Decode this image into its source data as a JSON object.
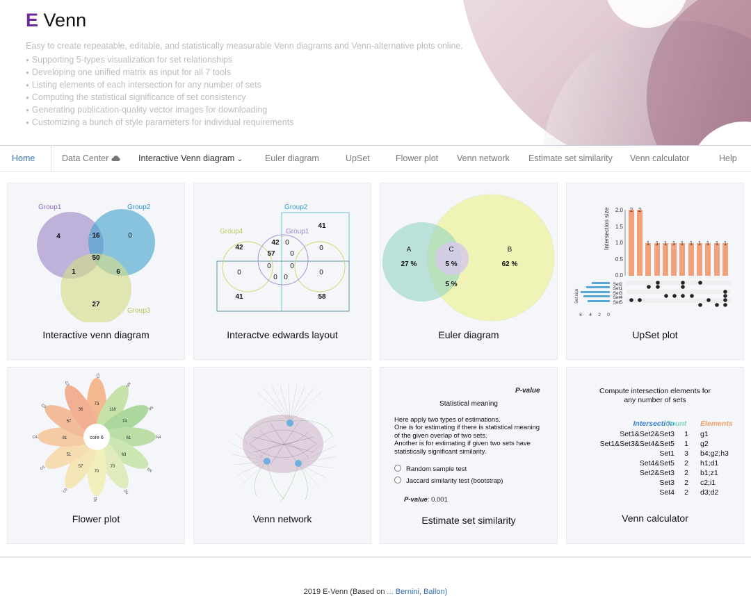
{
  "logo": {
    "letter": "E",
    "name": "Venn"
  },
  "tagline": "Easy to create repeatable, editable, and statistically measurable Venn diagrams and Venn-alternative plots online.",
  "features": [
    "Supporting 5-types visualization for set relationships",
    "Developing one unified matrix as input for all 7 tools",
    "Listing elements of each intersection for any number of sets",
    "Computing the statistical significance of set consistency",
    "Generating publication-quality vector images for downloading",
    "Customizing a bunch of style parameters for individual requirements"
  ],
  "nav": {
    "home": "Home",
    "data_center": "Data Center",
    "interactive": "Interactive Venn diagram",
    "euler": "Euler diagram",
    "upset": "UpSet",
    "flower": "Flower plot",
    "network": "Venn network",
    "similarity": "Estimate set similarity",
    "calculator": "Venn calculator",
    "help": "Help"
  },
  "cards": {
    "venn": {
      "caption": "Interactive venn diagram",
      "group1": "Group1",
      "group2": "Group2",
      "group3": "Group3",
      "values": {
        "a": "4",
        "ab": "16",
        "b": "0",
        "abc": "50",
        "ac": "1",
        "bc": "6",
        "c": "27"
      }
    },
    "edwards": {
      "caption": "Interactve edwards layout",
      "group1": "Group1",
      "group2": "Group2",
      "group4": "Group4",
      "values": [
        "41",
        "42",
        "42",
        "0",
        "57",
        "0",
        "0",
        "0",
        "0",
        "0",
        "0",
        "0",
        "0",
        "41",
        "58"
      ]
    },
    "euler": {
      "caption": "Euler diagram",
      "a": "A",
      "b": "B",
      "c": "C",
      "a_pct": "27 %",
      "c_pct": "5 %",
      "b_pct": "62 %",
      "ac_pct": "5 %"
    },
    "upset": {
      "caption": "UpSet plot",
      "ylabel": "Intersection size",
      "setsize_label": "Set size",
      "y_ticks": [
        "2.0",
        "1.5",
        "1.0",
        "0.5",
        "0.0"
      ],
      "sets": [
        "Set2",
        "Set1",
        "Set3",
        "Set4",
        "Set5"
      ],
      "size_ticks": [
        "6",
        "4",
        "2",
        "0"
      ]
    },
    "flower": {
      "caption": "Flower plot",
      "core": "core 6"
    },
    "network": {
      "caption": "Venn network"
    },
    "similarity": {
      "caption": "Estimate set similarity",
      "logo": "P-value",
      "title": "Statistical meaning",
      "lines": [
        "Here apply two types of estimations.",
        "One is for estimating if there is statistical meaning",
        "of the given overlap of two sets.",
        "Another is for estimating if given two sets have",
        "statistically significant similarity."
      ],
      "option1": "Random sample test",
      "option2": "Jaccard similarity test (bootstrap)",
      "pvalue_label": "P-value",
      "pvalue": ": 0.001"
    },
    "calculator": {
      "caption": "Venn calculator",
      "heading1": "Compute intersection elements for",
      "heading2": "any number of sets",
      "col_intersection": "Intersection",
      "col_count": "Count",
      "col_elements": "Elements",
      "rows": [
        {
          "name": "Set1&Set2&Set3",
          "count": "1",
          "elements": "g1"
        },
        {
          "name": "Set1&Set3&Set4&Set5",
          "count": "1",
          "elements": "g2"
        },
        {
          "name": "Set1",
          "count": "3",
          "elements": "b4;g2;h3"
        },
        {
          "name": "Set4&Set5",
          "count": "2",
          "elements": "h1;d1"
        },
        {
          "name": "Set2&Set3",
          "count": "2",
          "elements": "b1;z1"
        },
        {
          "name": "Set3",
          "count": "2",
          "elements": "c2;i1"
        },
        {
          "name": "Set4",
          "count": "2",
          "elements": "d3;d2"
        }
      ]
    }
  },
  "footer": {
    "prefix": "2019 E-Venn (Based on ",
    "link": "... Bernini, Ballon)"
  },
  "colors": {
    "accent": "#2f6fb6",
    "logo": "#6b2a9e",
    "calc_intersection": "#3a7fd0",
    "calc_count": "#7fd0c6",
    "calc_elements": "#f0a06a"
  }
}
